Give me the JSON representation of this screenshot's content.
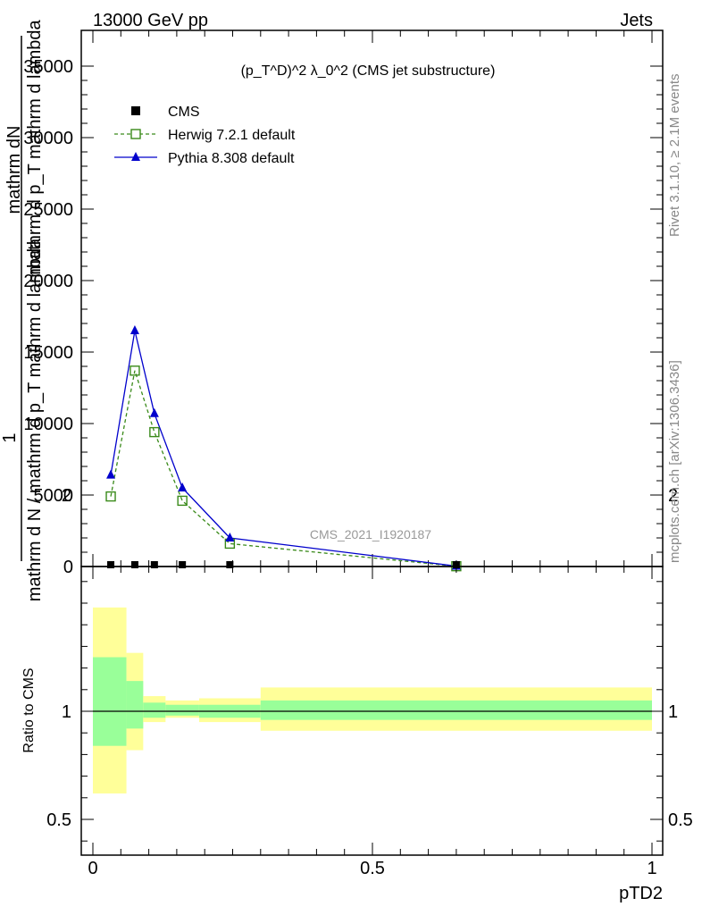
{
  "header": {
    "left": "13000 GeV pp",
    "right": "Jets"
  },
  "side_labels": {
    "rivet": "Rivet 3.1.10, ≥ 2.1M events",
    "mcplots": "mcplots.cern.ch [arXiv:1306.3436]"
  },
  "watermark": "CMS_2021_I1920187",
  "colors": {
    "cms": "#000000",
    "herwig": "#3a8a1a",
    "pythia": "#0000cc",
    "band_inner": "#99ff99",
    "band_outer": "#ffff99"
  },
  "chart_data": [
    {
      "type": "line",
      "title": "(p_T^D)^2 λ_0^2 (CMS jet substructure)",
      "ylabel_fraction_num": "1",
      "ylabel_num": "mathrm dN",
      "ylabel_den_top": "mathrm d p_T mathrm d lambda",
      "ylabel_den_bottom": "mathrm d N / mathrm d p_T mathrm d lambda",
      "xlim": [
        0,
        1
      ],
      "ylim": [
        0,
        35000
      ],
      "yticks": [
        0,
        5000,
        10000,
        15000,
        20000,
        25000,
        30000,
        35000
      ],
      "ytick_labels": [
        "0",
        "5000",
        "10000",
        "15000",
        "20000",
        "25000",
        "30000",
        "35000"
      ],
      "legend_position": "top-left",
      "series": [
        {
          "name": "CMS",
          "marker": "square-filled",
          "x": [
            0.032,
            0.075,
            0.11,
            0.16,
            0.245,
            0.65
          ],
          "y": [
            0,
            0,
            0,
            0,
            0,
            0
          ]
        },
        {
          "name": "Herwig 7.2.1 default",
          "marker": "square-open",
          "dash": true,
          "x": [
            0.032,
            0.075,
            0.11,
            0.16,
            0.245,
            0.65
          ],
          "y": [
            4900,
            13700,
            9400,
            4600,
            1600,
            20
          ]
        },
        {
          "name": "Pythia 8.308 default",
          "marker": "triangle-filled",
          "x": [
            0.032,
            0.075,
            0.11,
            0.16,
            0.245,
            0.65
          ],
          "y": [
            6400,
            16500,
            10700,
            5500,
            2000,
            30
          ]
        }
      ]
    },
    {
      "type": "area",
      "ylabel": "Ratio to CMS",
      "xlabel": "pTD2",
      "xlim": [
        0,
        1
      ],
      "xticks": [
        0,
        0.5,
        1
      ],
      "xtick_labels": [
        "0",
        "0.5",
        "1"
      ],
      "ylim": [
        0.38,
        2.3
      ],
      "yticks": [
        0.5,
        1,
        2
      ],
      "ytick_labels": [
        "0.5",
        "1",
        "2"
      ],
      "reference_line": 1,
      "bins": [
        {
          "x0": 0.0,
          "x1": 0.06,
          "inner": [
            0.84,
            1.25
          ],
          "outer": [
            0.62,
            1.48
          ]
        },
        {
          "x0": 0.06,
          "x1": 0.09,
          "inner": [
            0.92,
            1.14
          ],
          "outer": [
            0.82,
            1.27
          ]
        },
        {
          "x0": 0.09,
          "x1": 0.13,
          "inner": [
            0.97,
            1.04
          ],
          "outer": [
            0.95,
            1.07
          ]
        },
        {
          "x0": 0.13,
          "x1": 0.19,
          "inner": [
            0.98,
            1.03
          ],
          "outer": [
            0.97,
            1.05
          ]
        },
        {
          "x0": 0.19,
          "x1": 0.3,
          "inner": [
            0.97,
            1.03
          ],
          "outer": [
            0.95,
            1.06
          ]
        },
        {
          "x0": 0.3,
          "x1": 1.0,
          "inner": [
            0.96,
            1.05
          ],
          "outer": [
            0.91,
            1.11
          ]
        }
      ]
    }
  ]
}
